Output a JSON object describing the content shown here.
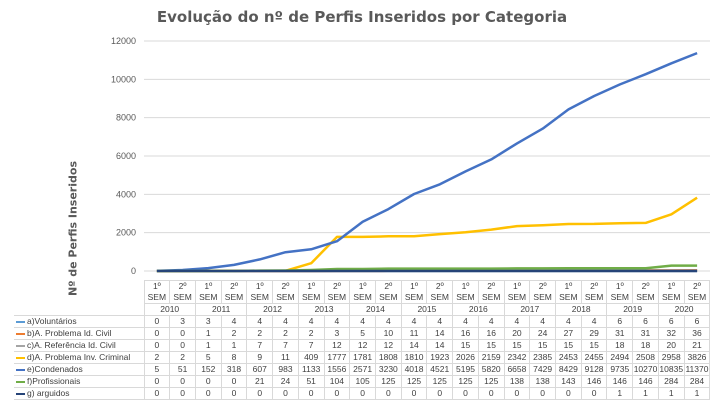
{
  "chart_data": {
    "type": "line",
    "title": "Evolução do nº de Perfis Inseridos por Categoria",
    "xlabel": "",
    "ylabel": "Nº de Perfis Inseridos",
    "ylim": [
      0,
      12000
    ],
    "yticks": [
      "0",
      "2000",
      "4000",
      "6000",
      "8000",
      "10000",
      "12000"
    ],
    "grid": true,
    "legend": "data table",
    "semesters": [
      "1º SEM",
      "2º SEM",
      "1º SEM",
      "2º SEM",
      "1º SEM",
      "2º SEM",
      "1º SEM",
      "2º SEM",
      "1º SEM",
      "2º SEM",
      "1º SEM",
      "2º SEM",
      "1º SEM",
      "2º SEM",
      "1º SEM",
      "2º SEM",
      "1º SEM",
      "2º SEM",
      "1º SEM",
      "2º SEM",
      "1º SEM",
      "2º SEM"
    ],
    "years": [
      "2010",
      "2011",
      "2012",
      "2013",
      "2014",
      "2015",
      "2016",
      "2017",
      "2018",
      "2019",
      "2020"
    ],
    "series": [
      {
        "name": "a)Voluntários",
        "color": "#5b9bd5",
        "values": [
          0,
          3,
          3,
          4,
          4,
          4,
          4,
          4,
          4,
          4,
          4,
          4,
          4,
          4,
          4,
          4,
          4,
          4,
          6,
          6,
          6,
          6
        ]
      },
      {
        "name": "b)A. Problema Id. Civil",
        "color": "#ed7d31",
        "values": [
          0,
          0,
          1,
          2,
          2,
          2,
          2,
          3,
          5,
          10,
          11,
          14,
          16,
          16,
          20,
          24,
          27,
          29,
          31,
          31,
          32,
          36
        ]
      },
      {
        "name": "c)A. Referência Id. Civil",
        "color": "#a5a5a5",
        "values": [
          0,
          0,
          1,
          1,
          7,
          7,
          7,
          12,
          12,
          12,
          14,
          14,
          15,
          15,
          15,
          15,
          15,
          15,
          18,
          18,
          20,
          21
        ]
      },
      {
        "name": "d)A. Problema Inv. Criminal",
        "color": "#ffc000",
        "values": [
          2,
          2,
          5,
          8,
          9,
          11,
          409,
          1777,
          1781,
          1808,
          1810,
          1923,
          2026,
          2159,
          2342,
          2385,
          2453,
          2455,
          2494,
          2508,
          2958,
          3826
        ]
      },
      {
        "name": "e)Condenados",
        "color": "#4472c4",
        "values": [
          5,
          51,
          152,
          318,
          607,
          983,
          1133,
          1556,
          2571,
          3230,
          4018,
          4521,
          5195,
          5820,
          6658,
          7429,
          8429,
          9128,
          9735,
          10270,
          10835,
          11370
        ]
      },
      {
        "name": "f)Profissionais",
        "color": "#70ad47",
        "values": [
          0,
          0,
          0,
          0,
          21,
          24,
          51,
          104,
          105,
          125,
          125,
          125,
          125,
          125,
          138,
          138,
          143,
          146,
          146,
          146,
          284,
          284
        ]
      },
      {
        "name": "g) arguidos",
        "color": "#264478",
        "values": [
          0,
          0,
          0,
          0,
          0,
          0,
          0,
          0,
          0,
          0,
          0,
          0,
          0,
          0,
          0,
          0,
          0,
          0,
          1,
          1,
          1,
          1
        ]
      }
    ]
  }
}
